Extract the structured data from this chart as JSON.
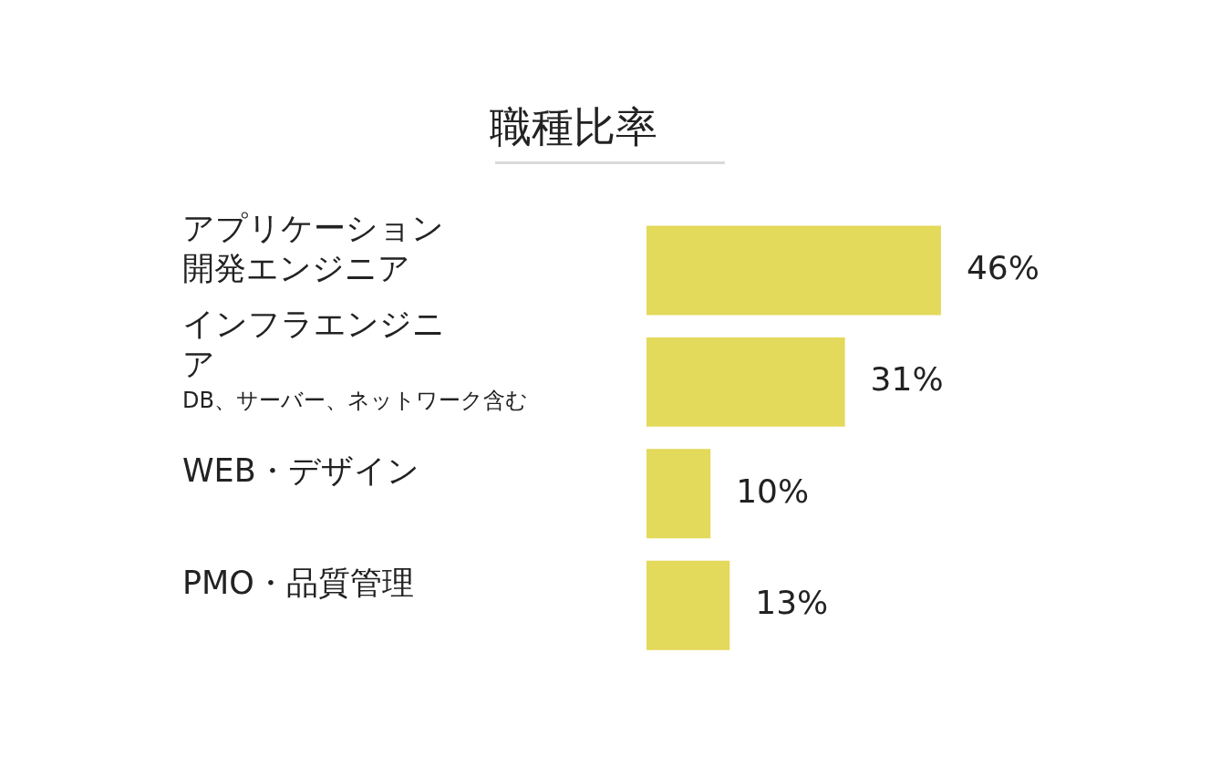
{
  "chart_data": {
    "type": "bar",
    "orientation": "horizontal",
    "title": "職種比率",
    "categories": [
      "アプリケーション開発エンジニア",
      "インフラエンジニア\nDB、サーバー、ネットワーク含む",
      "WEB・デザイン",
      "PMO・品質管理"
    ],
    "values": [
      46,
      31,
      10,
      13
    ],
    "color": "#e3d95a",
    "value_labels": [
      "46%",
      "31%",
      "10%",
      "13%"
    ],
    "legend": false
  }
}
